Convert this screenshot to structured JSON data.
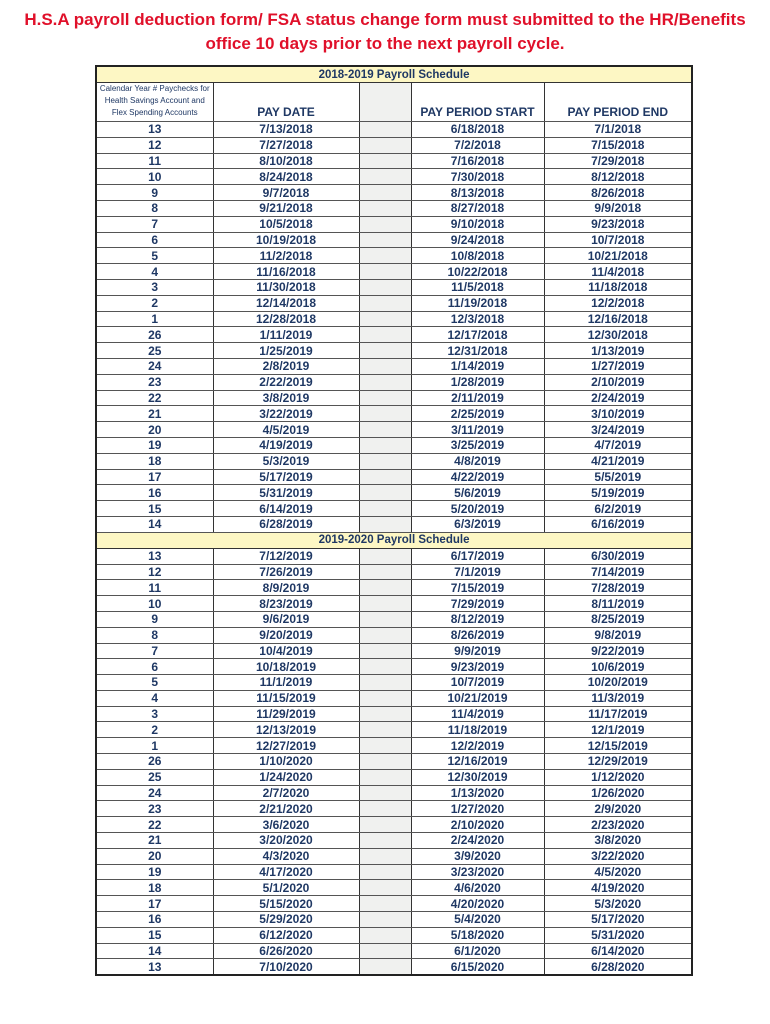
{
  "title": "H.S.A payroll deduction form/ FSA status change form must submitted to the HR/Benefits office 10 days prior to the next payroll cycle.",
  "headers": {
    "col1": "Calendar Year # Paychecks for Health Savings Account and Flex Spending Accounts",
    "pay_date": "PAY DATE",
    "start": "PAY PERIOD START",
    "end": "PAY PERIOD END"
  },
  "sections": [
    {
      "title": "2018-2019 Payroll Schedule",
      "rows": [
        [
          "13",
          "7/13/2018",
          "6/18/2018",
          "7/1/2018"
        ],
        [
          "12",
          "7/27/2018",
          "7/2/2018",
          "7/15/2018"
        ],
        [
          "11",
          "8/10/2018",
          "7/16/2018",
          "7/29/2018"
        ],
        [
          "10",
          "8/24/2018",
          "7/30/2018",
          "8/12/2018"
        ],
        [
          "9",
          "9/7/2018",
          "8/13/2018",
          "8/26/2018"
        ],
        [
          "8",
          "9/21/2018",
          "8/27/2018",
          "9/9/2018"
        ],
        [
          "7",
          "10/5/2018",
          "9/10/2018",
          "9/23/2018"
        ],
        [
          "6",
          "10/19/2018",
          "9/24/2018",
          "10/7/2018"
        ],
        [
          "5",
          "11/2/2018",
          "10/8/2018",
          "10/21/2018"
        ],
        [
          "4",
          "11/16/2018",
          "10/22/2018",
          "11/4/2018"
        ],
        [
          "3",
          "11/30/2018",
          "11/5/2018",
          "11/18/2018"
        ],
        [
          "2",
          "12/14/2018",
          "11/19/2018",
          "12/2/2018"
        ],
        [
          "1",
          "12/28/2018",
          "12/3/2018",
          "12/16/2018"
        ],
        [
          "26",
          "1/11/2019",
          "12/17/2018",
          "12/30/2018"
        ],
        [
          "25",
          "1/25/2019",
          "12/31/2018",
          "1/13/2019"
        ],
        [
          "24",
          "2/8/2019",
          "1/14/2019",
          "1/27/2019"
        ],
        [
          "23",
          "2/22/2019",
          "1/28/2019",
          "2/10/2019"
        ],
        [
          "22",
          "3/8/2019",
          "2/11/2019",
          "2/24/2019"
        ],
        [
          "21",
          "3/22/2019",
          "2/25/2019",
          "3/10/2019"
        ],
        [
          "20",
          "4/5/2019",
          "3/11/2019",
          "3/24/2019"
        ],
        [
          "19",
          "4/19/2019",
          "3/25/2019",
          "4/7/2019"
        ],
        [
          "18",
          "5/3/2019",
          "4/8/2019",
          "4/21/2019"
        ],
        [
          "17",
          "5/17/2019",
          "4/22/2019",
          "5/5/2019"
        ],
        [
          "16",
          "5/31/2019",
          "5/6/2019",
          "5/19/2019"
        ],
        [
          "15",
          "6/14/2019",
          "5/20/2019",
          "6/2/2019"
        ],
        [
          "14",
          "6/28/2019",
          "6/3/2019",
          "6/16/2019"
        ]
      ]
    },
    {
      "title": "2019-2020 Payroll Schedule",
      "rows": [
        [
          "13",
          "7/12/2019",
          "6/17/2019",
          "6/30/2019"
        ],
        [
          "12",
          "7/26/2019",
          "7/1/2019",
          "7/14/2019"
        ],
        [
          "11",
          "8/9/2019",
          "7/15/2019",
          "7/28/2019"
        ],
        [
          "10",
          "8/23/2019",
          "7/29/2019",
          "8/11/2019"
        ],
        [
          "9",
          "9/6/2019",
          "8/12/2019",
          "8/25/2019"
        ],
        [
          "8",
          "9/20/2019",
          "8/26/2019",
          "9/8/2019"
        ],
        [
          "7",
          "10/4/2019",
          "9/9/2019",
          "9/22/2019"
        ],
        [
          "6",
          "10/18/2019",
          "9/23/2019",
          "10/6/2019"
        ],
        [
          "5",
          "11/1/2019",
          "10/7/2019",
          "10/20/2019"
        ],
        [
          "4",
          "11/15/2019",
          "10/21/2019",
          "11/3/2019"
        ],
        [
          "3",
          "11/29/2019",
          "11/4/2019",
          "11/17/2019"
        ],
        [
          "2",
          "12/13/2019",
          "11/18/2019",
          "12/1/2019"
        ],
        [
          "1",
          "12/27/2019",
          "12/2/2019",
          "12/15/2019"
        ],
        [
          "26",
          "1/10/2020",
          "12/16/2019",
          "12/29/2019"
        ],
        [
          "25",
          "1/24/2020",
          "12/30/2019",
          "1/12/2020"
        ],
        [
          "24",
          "2/7/2020",
          "1/13/2020",
          "1/26/2020"
        ],
        [
          "23",
          "2/21/2020",
          "1/27/2020",
          "2/9/2020"
        ],
        [
          "22",
          "3/6/2020",
          "2/10/2020",
          "2/23/2020"
        ],
        [
          "21",
          "3/20/2020",
          "2/24/2020",
          "3/8/2020"
        ],
        [
          "20",
          "4/3/2020",
          "3/9/2020",
          "3/22/2020"
        ],
        [
          "19",
          "4/17/2020",
          "3/23/2020",
          "4/5/2020"
        ],
        [
          "18",
          "5/1/2020",
          "4/6/2020",
          "4/19/2020"
        ],
        [
          "17",
          "5/15/2020",
          "4/20/2020",
          "5/3/2020"
        ],
        [
          "16",
          "5/29/2020",
          "5/4/2020",
          "5/17/2020"
        ],
        [
          "15",
          "6/12/2020",
          "5/18/2020",
          "5/31/2020"
        ],
        [
          "14",
          "6/26/2020",
          "6/1/2020",
          "6/14/2020"
        ],
        [
          "13",
          "7/10/2020",
          "6/15/2020",
          "6/28/2020"
        ]
      ]
    }
  ]
}
